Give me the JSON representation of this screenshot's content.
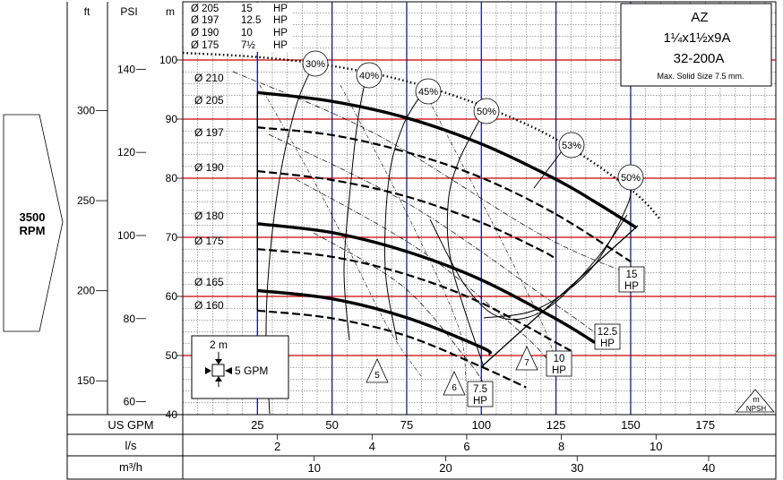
{
  "rpm_label_value": "3500",
  "rpm_label_unit": "RPM",
  "model": {
    "series": "AZ",
    "size": "1¼x1½x9A",
    "code": "32-200A",
    "note": "Max. Solid Size 7.5 mm."
  },
  "axis_headers": {
    "ft": "ft",
    "psi": "PSI",
    "m": "m"
  },
  "bottom_axes": {
    "gpm_label": "US GPM",
    "ls_label": "l/s",
    "m3h_label": "m³/h",
    "gpm_ticks": [
      "25",
      "50",
      "75",
      "100",
      "125",
      "150",
      "175"
    ],
    "ls_ticks": [
      "2",
      "4",
      "6",
      "8",
      "10"
    ],
    "m3h_ticks": [
      "10",
      "20",
      "30",
      "40"
    ]
  },
  "motor_table": [
    {
      "dia": "Ø 205",
      "hp": "15",
      "unit": "HP"
    },
    {
      "dia": "Ø 197",
      "hp": "12.5",
      "unit": "HP"
    },
    {
      "dia": "Ø 190",
      "hp": "10",
      "unit": "HP"
    },
    {
      "dia": "Ø 175",
      "hp": "7½",
      "unit": "HP"
    }
  ],
  "scale_box": {
    "head": "2 m",
    "flow": "5 GPM"
  },
  "npsh_label": {
    "value": "m",
    "unit": "NPSH"
  },
  "colors": {
    "grid": "#000000",
    "head_lines": "#cc0000",
    "flow_lines": "#1a1a8c",
    "curve": "#000000"
  },
  "chart_data": {
    "type": "line",
    "grid": true,
    "x_unit": "US GPM",
    "y_unit": "m",
    "xlim": [
      0,
      200
    ],
    "ylim": [
      40,
      106
    ],
    "y_ticks_m": [
      40,
      50,
      60,
      70,
      80,
      90,
      100
    ],
    "y_ticks_ft": [
      150,
      200,
      250,
      300
    ],
    "y_ticks_psi": [
      60,
      80,
      100,
      120,
      140
    ],
    "impeller_curves": [
      {
        "label": "Ø 210",
        "style": "dotted",
        "x": [
          0,
          25,
          50,
          75,
          100,
          125,
          150,
          160
        ],
        "y": [
          101.2,
          100.5,
          99.0,
          96.4,
          92.3,
          86.6,
          78.1,
          73.0
        ]
      },
      {
        "label": "Ø 205",
        "style": "solid",
        "x": [
          25,
          50,
          75,
          100,
          125,
          140,
          152
        ],
        "y": [
          94.5,
          93.0,
          90.2,
          85.8,
          79.8,
          75.4,
          71.6
        ]
      },
      {
        "label": "Ø 197",
        "style": "dashed",
        "x": [
          25,
          50,
          75,
          100,
          125,
          150
        ],
        "y": [
          88.6,
          87.3,
          84.4,
          80.1,
          73.9,
          65.9
        ]
      },
      {
        "label": "Ø 190",
        "style": "dashed",
        "x": [
          25,
          50,
          75,
          100,
          120,
          125
        ],
        "y": [
          81.2,
          79.7,
          76.9,
          72.5,
          67.8,
          66.3
        ]
      },
      {
        "label": "Ø 180",
        "style": "solid",
        "x": [
          25,
          50,
          75,
          100,
          125,
          138
        ],
        "y": [
          72.3,
          70.8,
          67.6,
          62.8,
          56.2,
          52.2
        ]
      },
      {
        "label": "Ø 175",
        "style": "dashed",
        "x": [
          25,
          50,
          75,
          100,
          130
        ],
        "y": [
          68.0,
          66.7,
          63.7,
          58.9,
          50.8
        ]
      },
      {
        "label": "Ø 165",
        "style": "solid",
        "x": [
          25,
          50,
          75,
          100,
          103
        ],
        "y": [
          61.0,
          59.6,
          56.4,
          51.4,
          50.2
        ]
      },
      {
        "label": "Ø 160",
        "style": "dashed",
        "x": [
          25,
          50,
          75,
          100,
          115
        ],
        "y": [
          57.6,
          56.3,
          53.3,
          48.1,
          44.6
        ]
      }
    ],
    "efficiency_labels": [
      "30%",
      "40%",
      "45%",
      "50%",
      "53%",
      "50%"
    ],
    "hp_limits": [
      "15 HP",
      "12.5 HP",
      "10 HP",
      "7.5 HP"
    ],
    "npsh_labels": [
      "5",
      "6",
      "7"
    ]
  }
}
